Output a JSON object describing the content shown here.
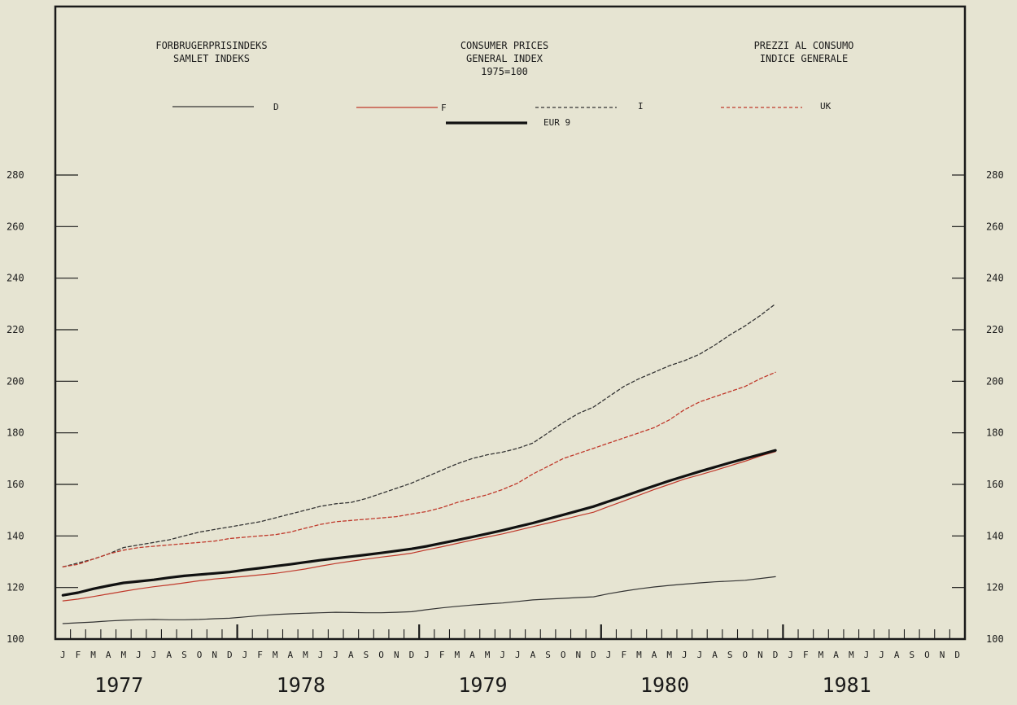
{
  "titles": {
    "danish": [
      "FORBRUGERPRISINDEKS",
      "SAMLET INDEKS"
    ],
    "english": [
      "CONSUMER PRICES",
      "GENERAL INDEX",
      "1975=100"
    ],
    "italian": [
      "PREZZI AL CONSUMO",
      "INDICE GENERALE"
    ]
  },
  "colors": {
    "background": "#e6e4d2",
    "axis": "#1a1a1a",
    "D": "#333333",
    "F": "#c0392b",
    "I": "#333333",
    "UK": "#c0392b",
    "EUR 9": "#111111"
  },
  "chart_data": {
    "type": "line",
    "title": "CONSUMER PRICES GENERAL INDEX 1975=100",
    "ylim": [
      100,
      290
    ],
    "yticks": [
      100,
      120,
      140,
      160,
      180,
      200,
      220,
      240,
      260,
      280
    ],
    "x_unit": "month",
    "x_range": [
      "1977-01",
      "1981-12"
    ],
    "month_labels": [
      "J",
      "F",
      "M",
      "A",
      "M",
      "J",
      "J",
      "A",
      "S",
      "O",
      "N",
      "D"
    ],
    "years": [
      "1977",
      "1978",
      "1979",
      "1980",
      "1981"
    ],
    "grid": false,
    "legend_placement": "top",
    "series": [
      {
        "name": "D",
        "style": "solid-thin",
        "x_start": "1977-01",
        "values": [
          106,
          106.3,
          106.6,
          107,
          107.3,
          107.5,
          107.6,
          107.5,
          107.5,
          107.6,
          107.9,
          108.1,
          108.6,
          109.1,
          109.5,
          109.8,
          110,
          110.2,
          110.4,
          110.3,
          110.2,
          110.2,
          110.4,
          110.6,
          111.4,
          112.1,
          112.7,
          113.2,
          113.6,
          114,
          114.6,
          115.2,
          115.5,
          115.8,
          116.1,
          116.4,
          117.6,
          118.6,
          119.5,
          120.2,
          120.8,
          121.3,
          121.8,
          122.2,
          122.5,
          122.8,
          123.5,
          124.2
        ]
      },
      {
        "name": "F",
        "style": "solid-thin",
        "x_start": "1977-01",
        "values": [
          114.8,
          115.5,
          116.5,
          117.5,
          118.5,
          119.5,
          120.3,
          121,
          121.8,
          122.6,
          123.3,
          123.8,
          124.3,
          124.9,
          125.5,
          126.3,
          127.2,
          128.3,
          129.3,
          130.2,
          131,
          131.8,
          132.5,
          133.3,
          134.6,
          135.8,
          137.1,
          138.4,
          139.6,
          140.8,
          142.2,
          143.6,
          145,
          146.4,
          147.8,
          149.2,
          151.4,
          153.6,
          155.8,
          158,
          160,
          162.1,
          163.7,
          165.4,
          167.2,
          169,
          171,
          172.7
        ]
      },
      {
        "name": "I",
        "style": "dashed",
        "x_start": "1977-01",
        "values": [
          128,
          129.5,
          131,
          133,
          135.5,
          136.5,
          137.5,
          138.5,
          140,
          141.5,
          142.5,
          143.5,
          144.5,
          145.5,
          147,
          148.5,
          150,
          151.5,
          152.5,
          153,
          154.5,
          156.5,
          158.5,
          160.5,
          163,
          165.5,
          168,
          170,
          171.5,
          172.5,
          174,
          176,
          180,
          184,
          187.5,
          190,
          194,
          198,
          201,
          203.5,
          206,
          208,
          210.5,
          214,
          218,
          221.5,
          225.5,
          230
        ]
      },
      {
        "name": "UK",
        "style": "dashed",
        "x_start": "1977-01",
        "values": [
          128,
          129,
          131,
          133,
          134.5,
          135.5,
          136,
          136.5,
          137,
          137.5,
          138,
          139,
          139.5,
          140,
          140.5,
          141.5,
          143,
          144.5,
          145.5,
          146,
          146.5,
          147,
          147.5,
          148.5,
          149.5,
          151,
          153,
          154.5,
          156,
          158,
          160.5,
          164,
          167,
          170,
          172,
          174,
          176,
          178,
          180,
          182,
          185,
          189,
          192,
          194,
          196,
          198,
          201,
          203.5
        ]
      },
      {
        "name": "EUR 9",
        "style": "solid-thick",
        "x_start": "1977-01",
        "values": [
          117,
          118,
          119.5,
          120.7,
          121.8,
          122.4,
          123,
          123.8,
          124.5,
          125,
          125.5,
          126,
          126.8,
          127.5,
          128.3,
          129,
          129.8,
          130.6,
          131.3,
          132,
          132.7,
          133.4,
          134.2,
          135,
          136,
          137.2,
          138.4,
          139.6,
          140.9,
          142.2,
          143.6,
          145,
          146.6,
          148.2,
          149.8,
          151.4,
          153.4,
          155.4,
          157.4,
          159.4,
          161.4,
          163.2,
          165,
          166.7,
          168.4,
          170,
          171.6,
          173.2
        ]
      }
    ]
  }
}
